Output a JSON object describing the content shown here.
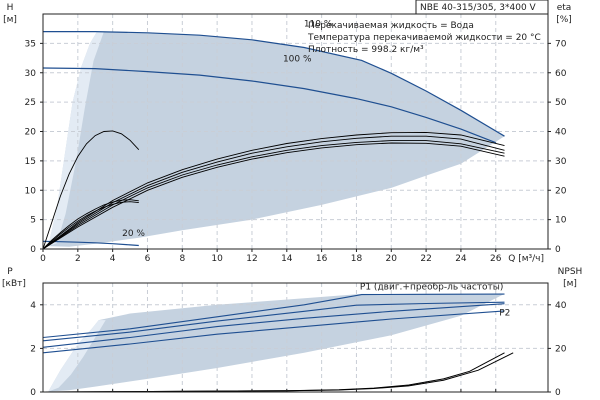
{
  "chart_data": [
    {
      "type": "line",
      "title": "NBE 40-315/305, 3*400 V",
      "notes": [
        "Перекачиваемая жидкость = Вода",
        "Температура перекачиваемой жидкости = 20 °C",
        "Плотность = 998.2 кг/м³"
      ],
      "xlabel": "Q [м³/ч]",
      "ylabel": "H",
      "ylabel_unit": "[м]",
      "ylabel2": "eta",
      "ylabel2_unit": "[%]",
      "xlim": [
        0,
        29
      ],
      "ylim": [
        0,
        40
      ],
      "ylim2": [
        0,
        80
      ],
      "xticks": [
        0,
        2,
        4,
        6,
        8,
        10,
        12,
        14,
        16,
        18,
        20,
        22,
        24,
        26
      ],
      "yticks": [
        0,
        5,
        10,
        15,
        20,
        25,
        30,
        35
      ],
      "yticks2": [
        0,
        10,
        20,
        30,
        40,
        50,
        60,
        70
      ],
      "grid": true,
      "region_color": "#c5d2e0",
      "region_color_light": "#e3ebf4",
      "curve_color": "#1f4f91",
      "eta_color": "#000000",
      "operating_region": [
        [
          0.3,
          0.5
        ],
        [
          0.8,
          7
        ],
        [
          1.3,
          17
        ],
        [
          1.7,
          25
        ],
        [
          2.2,
          31
        ],
        [
          2.7,
          35
        ],
        [
          3.1,
          37
        ],
        [
          8,
          36.6
        ],
        [
          12,
          35.6
        ],
        [
          15,
          34.3
        ],
        [
          18.3,
          32.2
        ],
        [
          21,
          28.5
        ],
        [
          24,
          23.7
        ],
        [
          26.5,
          19.2
        ],
        [
          24,
          14.5
        ],
        [
          22,
          12.5
        ],
        [
          20,
          10.4
        ],
        [
          16,
          7.5
        ],
        [
          12,
          5
        ],
        [
          8,
          3.2
        ],
        [
          5.5,
          1.9
        ],
        [
          3,
          0.9
        ],
        [
          1.5,
          0.4
        ]
      ],
      "light_region": [
        [
          0.3,
          0.5
        ],
        [
          0.8,
          7
        ],
        [
          1.3,
          17
        ],
        [
          1.7,
          25
        ],
        [
          2.2,
          31
        ],
        [
          2.7,
          35
        ],
        [
          3.1,
          37
        ],
        [
          3.5,
          37
        ],
        [
          2.9,
          32
        ],
        [
          2.4,
          24
        ],
        [
          1.9,
          15
        ],
        [
          1.3,
          6
        ],
        [
          0.8,
          1
        ]
      ],
      "head_curves": [
        {
          "name": "110 %",
          "x": [
            0,
            3,
            6,
            9,
            12,
            15,
            18.3,
            20,
            22,
            24,
            26.5
          ],
          "y": [
            37,
            37,
            36.8,
            36.4,
            35.6,
            34.3,
            32.1,
            29.9,
            26.9,
            23.6,
            19.2
          ]
        },
        {
          "name": "100 %",
          "x": [
            0,
            3,
            6,
            9,
            12,
            15,
            18,
            20,
            22,
            24,
            26
          ],
          "y": [
            30.8,
            30.7,
            30.2,
            29.6,
            28.6,
            27.3,
            25.6,
            24.2,
            22.4,
            20.4,
            18.1
          ]
        },
        {
          "name": "20 %",
          "x": [
            0,
            1,
            2,
            3,
            4,
            5,
            5.5
          ],
          "y": [
            1.3,
            1.25,
            1.15,
            1.05,
            0.9,
            0.7,
            0.6
          ]
        }
      ],
      "eta_curves": [
        {
          "x": [
            0,
            2,
            4,
            6,
            8,
            10,
            12,
            14,
            16,
            18,
            20,
            22,
            24,
            26.5
          ],
          "y": [
            0,
            9,
            16.5,
            22.5,
            27,
            30.6,
            33.6,
            35.9,
            37.6,
            38.8,
            39.6,
            39.7,
            38.8,
            35.2
          ]
        },
        {
          "x": [
            0,
            2,
            4,
            6,
            8,
            10,
            12,
            14,
            16,
            18,
            20,
            22,
            24,
            26.5
          ],
          "y": [
            0,
            8.5,
            15.8,
            21.6,
            26.1,
            29.6,
            32.6,
            34.8,
            36.5,
            37.7,
            38.4,
            38.4,
            37.4,
            33.6
          ]
        },
        {
          "x": [
            0,
            2,
            4,
            6,
            8,
            10,
            12,
            14,
            16,
            18,
            20,
            22,
            24,
            26.5
          ],
          "y": [
            0,
            8,
            15,
            20.8,
            25.2,
            28.6,
            31.4,
            33.6,
            35.2,
            36.3,
            36.9,
            36.9,
            35.8,
            32.6
          ]
        },
        {
          "x": [
            0,
            2,
            4,
            6,
            8,
            10,
            12,
            14,
            16,
            18,
            20,
            22,
            24,
            26.5
          ],
          "y": [
            0,
            7.5,
            14.2,
            20,
            24.4,
            27.8,
            30.6,
            32.8,
            34.4,
            35.5,
            36.1,
            36,
            35,
            31.6
          ]
        },
        {
          "x": [
            0,
            0.5,
            1,
            1.5,
            2,
            2.5,
            3,
            3.5,
            4,
            4.5,
            5,
            5.5
          ],
          "y": [
            0,
            9,
            18,
            25.5,
            31.5,
            35.8,
            38.6,
            40,
            40.2,
            39.2,
            37,
            33.8
          ]
        },
        {
          "x": [
            0,
            0.5,
            1,
            1.5,
            2,
            2.5,
            3,
            3.5,
            4,
            4.5,
            5,
            5.5
          ],
          "y": [
            0,
            3,
            5.6,
            8,
            10.2,
            12,
            13.6,
            15,
            16,
            16.6,
            16.8,
            16.4
          ]
        },
        {
          "x": [
            0,
            0.5,
            1,
            1.5,
            2,
            2.5,
            3,
            3.5,
            4,
            4.5,
            5,
            5.5
          ],
          "y": [
            0,
            2.6,
            5.1,
            7.4,
            9.5,
            11.3,
            12.9,
            14.2,
            15.2,
            15.9,
            16.1,
            15.8
          ]
        }
      ]
    },
    {
      "type": "line",
      "xlabel": "",
      "ylabel": "P",
      "ylabel_unit": "[кВт]",
      "ylabel2": "NPSH",
      "ylabel2_unit": "[м]",
      "xlim": [
        0,
        29
      ],
      "ylim": [
        0,
        5
      ],
      "ylim2": [
        0,
        50
      ],
      "yticks": [
        0,
        2,
        4
      ],
      "yticks2": [
        0,
        20,
        40
      ],
      "grid": true,
      "operating_region": [
        [
          0.3,
          0.02
        ],
        [
          1,
          1
        ],
        [
          2,
          2.2
        ],
        [
          2.8,
          2.9
        ],
        [
          3.2,
          3.3
        ],
        [
          5,
          3.6
        ],
        [
          10,
          4.0
        ],
        [
          15,
          4.3
        ],
        [
          18.3,
          4.5
        ],
        [
          22,
          4.5
        ],
        [
          26.5,
          4.5
        ],
        [
          24,
          3.5
        ],
        [
          20,
          2.6
        ],
        [
          15,
          1.8
        ],
        [
          10,
          1.1
        ],
        [
          6,
          0.6
        ],
        [
          3,
          0.25
        ],
        [
          1.5,
          0.08
        ]
      ],
      "light_region": [
        [
          0.3,
          0.02
        ],
        [
          1,
          1
        ],
        [
          2,
          2.2
        ],
        [
          2.8,
          2.9
        ],
        [
          3.2,
          3.3
        ],
        [
          3.6,
          3.3
        ],
        [
          3,
          2.5
        ],
        [
          2.3,
          1.6
        ],
        [
          1.6,
          0.8
        ],
        [
          0.9,
          0.2
        ]
      ],
      "power_curves": [
        {
          "name": "P1 (двиг.+преобр-ль частоты)",
          "label": true,
          "x": [
            0,
            5,
            10,
            15,
            18.3,
            22,
            26.5
          ],
          "y": [
            2.5,
            2.9,
            3.45,
            4.0,
            4.47,
            4.48,
            4.49
          ]
        },
        {
          "name": "",
          "label": false,
          "x": [
            0,
            5,
            10,
            15,
            18,
            22,
            26.5
          ],
          "y": [
            2.35,
            2.75,
            3.25,
            3.7,
            3.98,
            4.06,
            4.12
          ]
        },
        {
          "name": "P2",
          "label": true,
          "x": [
            0,
            5,
            10,
            15,
            20,
            26.5
          ],
          "y": [
            2.05,
            2.5,
            3.0,
            3.38,
            3.7,
            4.05
          ]
        },
        {
          "name": "",
          "label": false,
          "x": [
            0,
            5,
            10,
            15,
            20,
            26.5
          ],
          "y": [
            1.8,
            2.2,
            2.65,
            3.0,
            3.35,
            3.72
          ]
        }
      ],
      "npsh_curves": [
        {
          "x": [
            0,
            5,
            10,
            14,
            17,
            19,
            21,
            23,
            24.5,
            26.5
          ],
          "y": [
            0,
            0.2,
            0.4,
            0.6,
            1.0,
            1.8,
            3.2,
            6,
            9.5,
            18
          ]
        },
        {
          "x": [
            0,
            5,
            10,
            14,
            17,
            19,
            21,
            23,
            25,
            27
          ],
          "y": [
            0,
            0.2,
            0.4,
            0.6,
            0.9,
            1.6,
            2.8,
            5.4,
            10,
            18
          ]
        }
      ]
    }
  ]
}
